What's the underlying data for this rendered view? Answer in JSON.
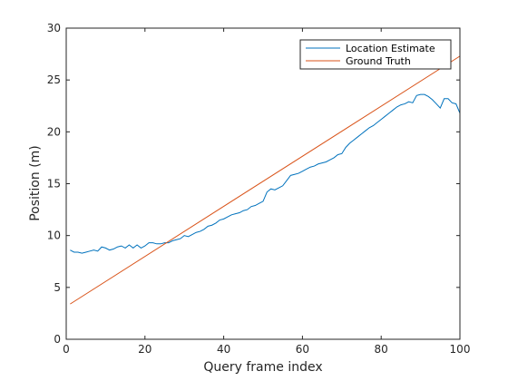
{
  "chart_data": {
    "type": "line",
    "title": "",
    "xlabel": "Query frame index",
    "ylabel": "Position (m)",
    "xlim": [
      0,
      100
    ],
    "ylim": [
      0,
      30
    ],
    "xticks": [
      0,
      20,
      40,
      60,
      80,
      100
    ],
    "yticks": [
      0,
      5,
      10,
      15,
      20,
      25,
      30
    ],
    "grid": false,
    "legend_position": "top-right",
    "series": [
      {
        "name": "Location Estimate",
        "color": "#0072BD",
        "x": [
          1,
          2,
          3,
          4,
          5,
          6,
          7,
          8,
          9,
          10,
          11,
          12,
          13,
          14,
          15,
          16,
          17,
          18,
          19,
          20,
          21,
          22,
          23,
          24,
          25,
          26,
          27,
          28,
          29,
          30,
          31,
          32,
          33,
          34,
          35,
          36,
          37,
          38,
          39,
          40,
          41,
          42,
          43,
          44,
          45,
          46,
          47,
          48,
          49,
          50,
          51,
          52,
          53,
          54,
          55,
          56,
          57,
          58,
          59,
          60,
          61,
          62,
          63,
          64,
          65,
          66,
          67,
          68,
          69,
          70,
          71,
          72,
          73,
          74,
          75,
          76,
          77,
          78,
          79,
          80,
          81,
          82,
          83,
          84,
          85,
          86,
          87,
          88,
          89,
          90,
          91,
          92,
          93,
          94,
          95,
          96,
          97,
          98,
          99,
          100
        ],
        "y": [
          8.6,
          8.4,
          8.4,
          8.3,
          8.4,
          8.5,
          8.6,
          8.5,
          8.9,
          8.8,
          8.6,
          8.7,
          8.9,
          9.0,
          8.8,
          9.1,
          8.8,
          9.1,
          8.8,
          9.0,
          9.3,
          9.3,
          9.2,
          9.2,
          9.3,
          9.3,
          9.5,
          9.6,
          9.7,
          10.0,
          9.9,
          10.1,
          10.3,
          10.4,
          10.6,
          10.9,
          11.0,
          11.2,
          11.5,
          11.6,
          11.8,
          12.0,
          12.1,
          12.2,
          12.4,
          12.5,
          12.8,
          12.9,
          13.1,
          13.3,
          14.2,
          14.5,
          14.4,
          14.6,
          14.8,
          15.3,
          15.8,
          15.9,
          16.0,
          16.2,
          16.4,
          16.6,
          16.7,
          16.9,
          17.0,
          17.1,
          17.3,
          17.5,
          17.8,
          17.9,
          18.5,
          18.9,
          19.2,
          19.5,
          19.8,
          20.1,
          20.4,
          20.6,
          20.9,
          21.2,
          21.5,
          21.8,
          22.1,
          22.4,
          22.6,
          22.7,
          22.9,
          22.8,
          23.5,
          23.6,
          23.6,
          23.4,
          23.1,
          22.7,
          22.3,
          23.2,
          23.2,
          22.8,
          22.7,
          21.8
        ]
      },
      {
        "name": "Ground Truth",
        "color": "#D95319",
        "x": [
          1,
          100
        ],
        "y": [
          3.4,
          27.3
        ]
      }
    ]
  }
}
